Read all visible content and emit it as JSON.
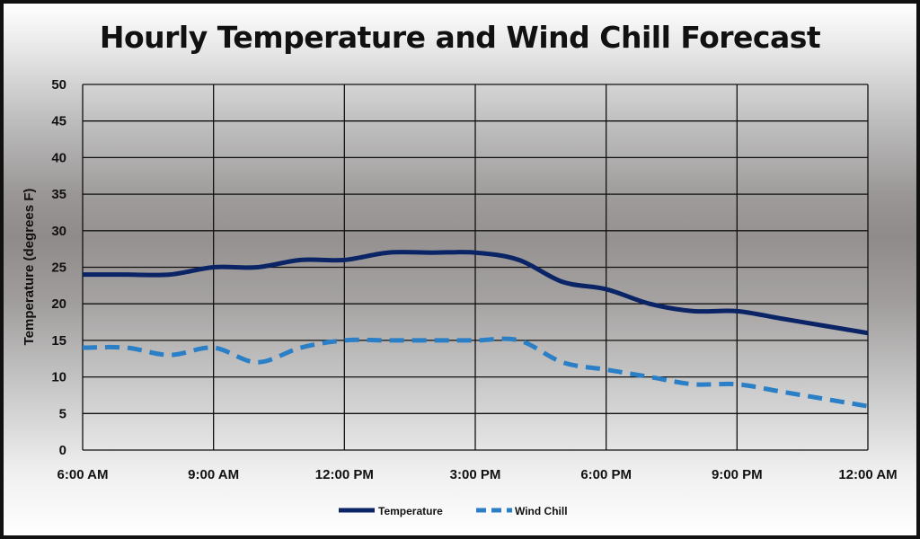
{
  "chart_data": {
    "type": "line",
    "title": "Hourly Temperature and Wind Chill Forecast",
    "xlabel": "",
    "ylabel": "Temperature (degrees F)",
    "ylim": [
      0,
      50
    ],
    "yticks": [
      0,
      5,
      10,
      15,
      20,
      25,
      30,
      35,
      40,
      45,
      50
    ],
    "xlim": [
      0,
      18
    ],
    "x_tick_labels": [
      "6:00 AM",
      "9:00 AM",
      "12:00 PM",
      "3:00 PM",
      "6:00 PM",
      "9:00 PM",
      "12:00 AM"
    ],
    "x_ticks": [
      0,
      3,
      6,
      9,
      12,
      15,
      18
    ],
    "grid": true,
    "legend_position": "bottom",
    "x": [
      0,
      1,
      2,
      3,
      4,
      5,
      6,
      7,
      8,
      9,
      10,
      11,
      12,
      13,
      14,
      15,
      16,
      17,
      18
    ],
    "series": [
      {
        "name": "Temperature",
        "color": "#0b2466",
        "style": "solid",
        "values": [
          24,
          24,
          24,
          25,
          25,
          26,
          26,
          27,
          27,
          27,
          26,
          23,
          22,
          20,
          19,
          19,
          18,
          17,
          16
        ]
      },
      {
        "name": "Wind Chill",
        "color": "#2a7fc6",
        "style": "dashed",
        "values": [
          14,
          14,
          13,
          14,
          12,
          14,
          15,
          15,
          15,
          15,
          15,
          12,
          11,
          10,
          9,
          9,
          8,
          7,
          6
        ]
      }
    ]
  }
}
